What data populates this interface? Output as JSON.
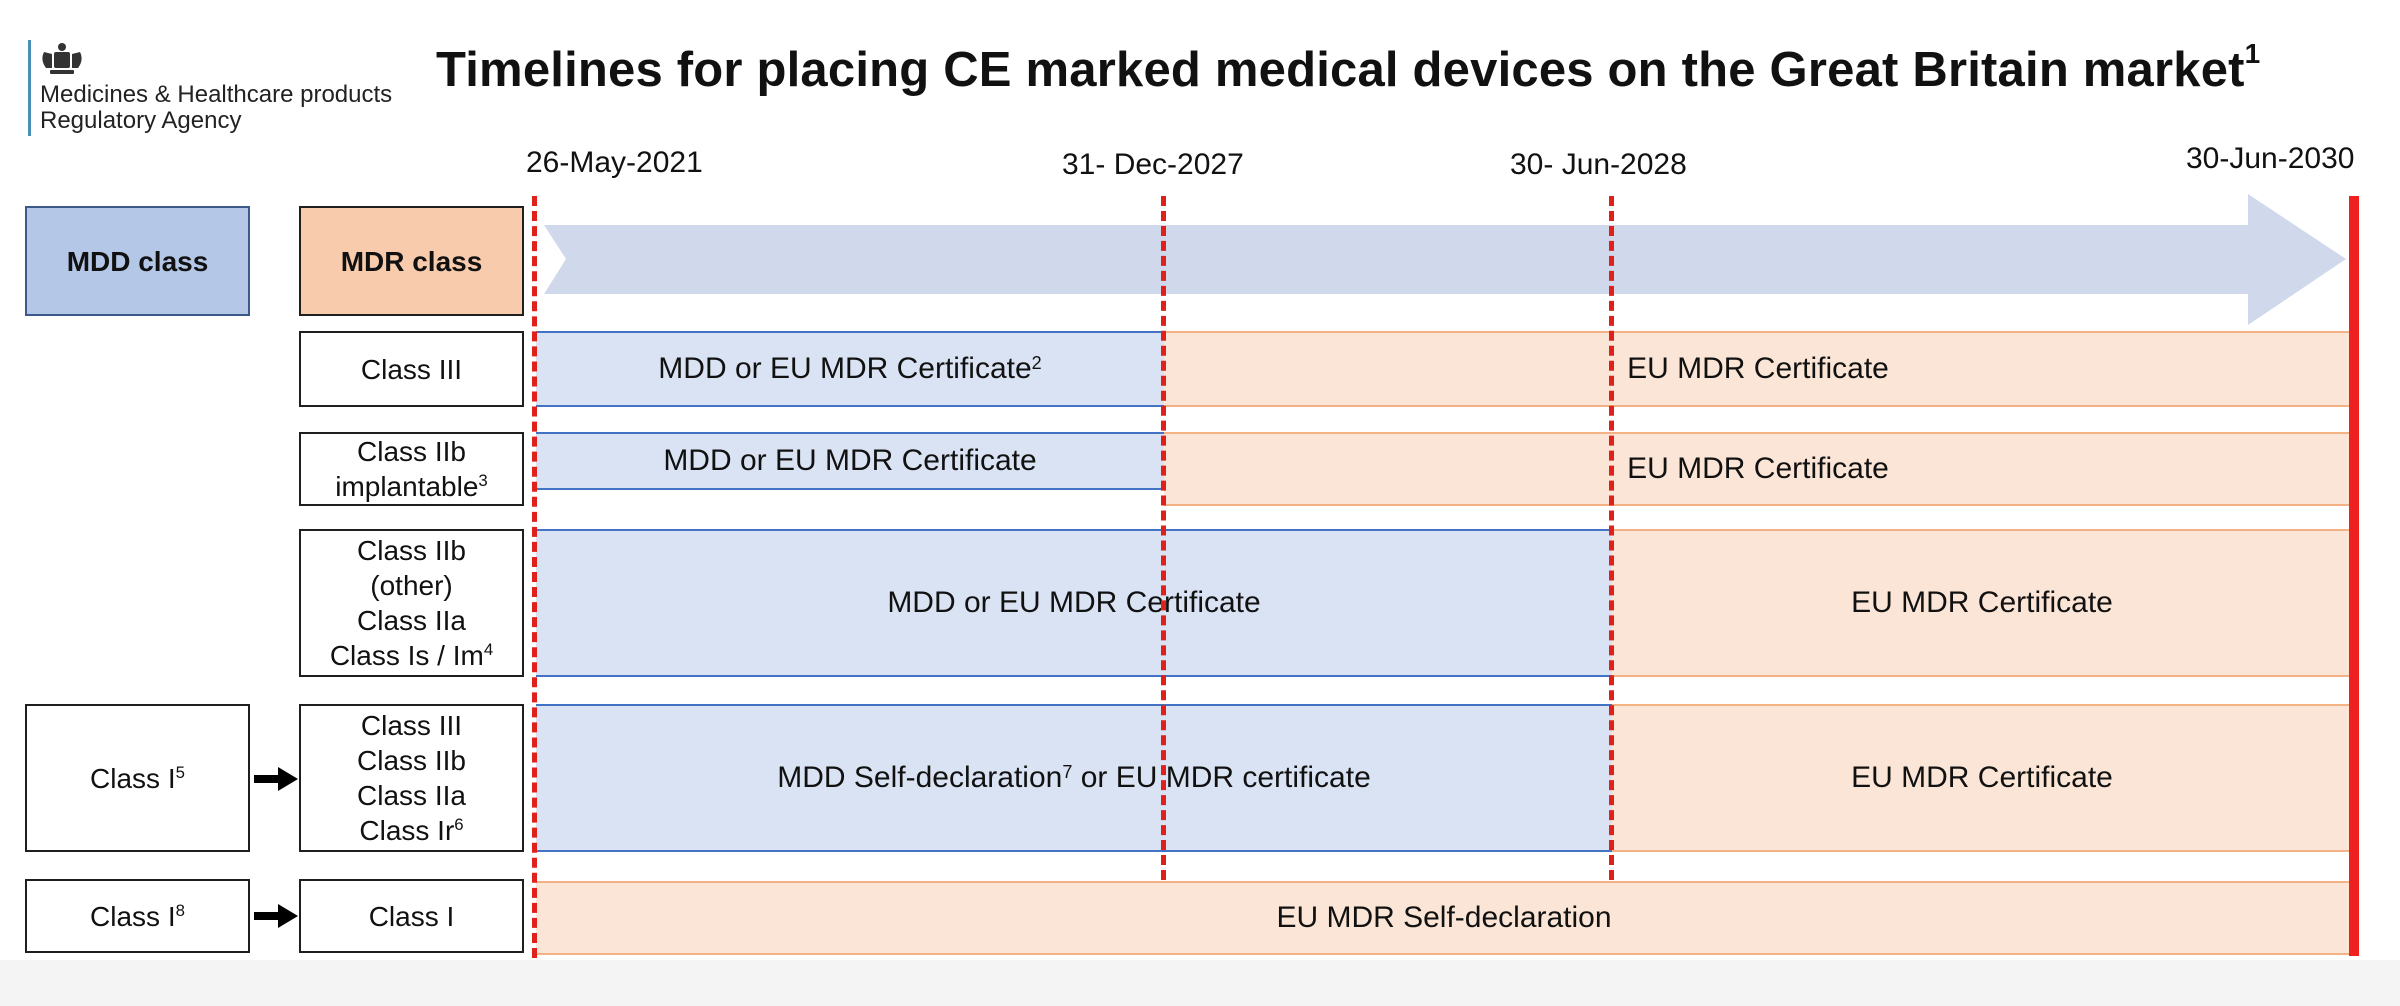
{
  "header": {
    "agency_line1": "Medicines & Healthcare products",
    "agency_line2": "Regulatory Agency",
    "title": "Timelines for placing CE marked medical devices on the Great Britain market",
    "title_note": "1"
  },
  "dates": [
    "26-May-2021",
    "31- Dec-2027",
    "30- Jun-2028",
    "30-Jun-2030"
  ],
  "headers": {
    "mdd": "MDD class",
    "mdr": "MDR class"
  },
  "rows": [
    {
      "mdr_lines": [
        "Class III"
      ],
      "bars": [
        {
          "text": "MDD or EU MDR Certificate",
          "sup": "2"
        },
        {
          "text": "EU MDR Certificate",
          "sup": ""
        }
      ]
    },
    {
      "mdr_lines": [
        "Class IIb",
        "implantable"
      ],
      "mdr_sup": "3",
      "bars": [
        {
          "text": "MDD or EU MDR Certificate",
          "sup": ""
        },
        {
          "text": "EU MDR Certificate",
          "sup": ""
        }
      ]
    },
    {
      "mdr_lines": [
        "Class IIb",
        "(other)",
        "Class IIa",
        "Class Is / Im"
      ],
      "mdr_sup": "4",
      "bars": [
        {
          "text": "MDD or EU MDR Certificate",
          "sup": ""
        },
        {
          "text": "EU MDR Certificate",
          "sup": ""
        }
      ]
    },
    {
      "mdd": "Class I",
      "mdd_sup": "5",
      "mdr_lines": [
        "Class III",
        "Class IIb",
        "Class IIa",
        "Class Ir"
      ],
      "mdr_sup": "6",
      "bars": [
        {
          "text": "MDD Self-declaration",
          "sup": "7",
          "suffix": " or EU MDR certificate"
        },
        {
          "text": "EU MDR Certificate",
          "sup": ""
        }
      ]
    },
    {
      "mdd": "Class I",
      "mdd_sup": "8",
      "mdr_lines": [
        "Class I"
      ],
      "bars": [
        {
          "text": "EU MDR Self-declaration",
          "sup": ""
        }
      ]
    }
  ],
  "colors": {
    "mdd_fill": "#b4c7e7",
    "mdr_fill": "#f8cbad",
    "mdd_bar": "#dae3f3",
    "mdr_bar": "#fbe5d6",
    "timeline_arrow": "#d0d8ec",
    "deadline": "#e0201b"
  },
  "icons": [
    "crest-icon",
    "arrow-right-icon"
  ]
}
